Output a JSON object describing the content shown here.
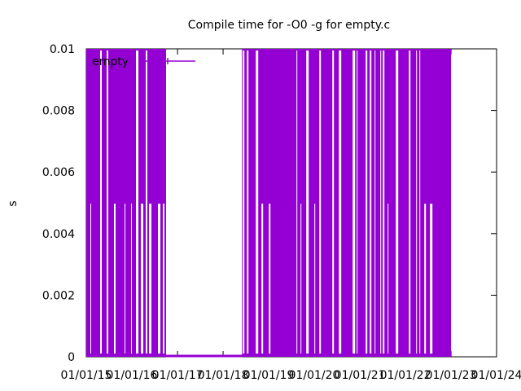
{
  "chart_data": {
    "type": "line",
    "title": "Compile time for -O0 -g for empty.c",
    "ylabel": "s",
    "xlabel": "",
    "ylim": [
      0,
      0.01
    ],
    "y_ticks": [
      "0",
      "0.002",
      "0.004",
      "0.006",
      "0.008",
      "0.01"
    ],
    "y_tick_values": [
      0,
      0.002,
      0.004,
      0.006,
      0.008,
      0.01
    ],
    "xlim": [
      "2015-01-01",
      "2024-01-01"
    ],
    "x_ticks": [
      "01/01/15",
      "01/01/16",
      "01/01/17",
      "01/01/18",
      "01/01/19",
      "01/01/20",
      "01/01/21",
      "01/01/22",
      "01/01/23",
      "01/01/24"
    ],
    "x_tick_values": [
      "2015-01-01",
      "2016-01-01",
      "2017-01-01",
      "2018-01-01",
      "2019-01-01",
      "2020-01-01",
      "2021-01-01",
      "2022-01-01",
      "2023-01-01",
      "2024-01-01"
    ],
    "legend": "top-left",
    "series": [
      {
        "name": "empty",
        "color": "#9400d3",
        "segments": [
          {
            "start": "2015-01-01",
            "end": "2016-10-01",
            "low": 0,
            "high": 0.01,
            "note": "dense oscillation"
          },
          {
            "start": "2016-10-01",
            "end": "2018-06-01",
            "low": 0,
            "high": 0,
            "note": "flat"
          },
          {
            "start": "2018-06-01",
            "end": "2023-01-01",
            "low": 0,
            "high": 0.01,
            "note": "dense oscillation"
          }
        ],
        "mid_values": [
          0.005,
          0.0025
        ]
      }
    ]
  },
  "colors": {
    "series": "#9400d3",
    "axis": "#000000",
    "background": "#ffffff"
  }
}
